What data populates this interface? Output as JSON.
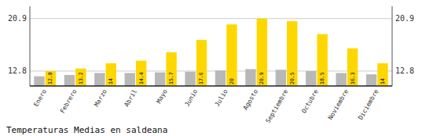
{
  "chart_data": {
    "type": "bar",
    "title": "Temperaturas Medias en saldeana",
    "categories": [
      "Enero",
      "Febrero",
      "Marzo",
      "Abril",
      "Mayo",
      "Junio",
      "Julio",
      "Agosto",
      "Septiembre",
      "Octubre",
      "Noviembre",
      "Diciembre"
    ],
    "series": [
      {
        "color": "#B8B8B8",
        "values": [
          12.0,
          12.2,
          12.5,
          12.5,
          12.6,
          12.7,
          12.9,
          13.1,
          13.0,
          12.8,
          12.5,
          12.3
        ]
      },
      {
        "color": "#FFD700",
        "data_labels": true,
        "values": [
          12.8,
          13.2,
          14.0,
          14.4,
          15.7,
          17.6,
          20.0,
          20.9,
          20.5,
          18.5,
          16.3,
          14.0
        ]
      }
    ],
    "ylim": [
      10.5,
      22.8
    ],
    "yticks": [
      12.8,
      20.9
    ],
    "y2lim": [
      10.5,
      22.8
    ],
    "y2ticks": [
      12.8,
      20.9
    ],
    "grid": true
  }
}
